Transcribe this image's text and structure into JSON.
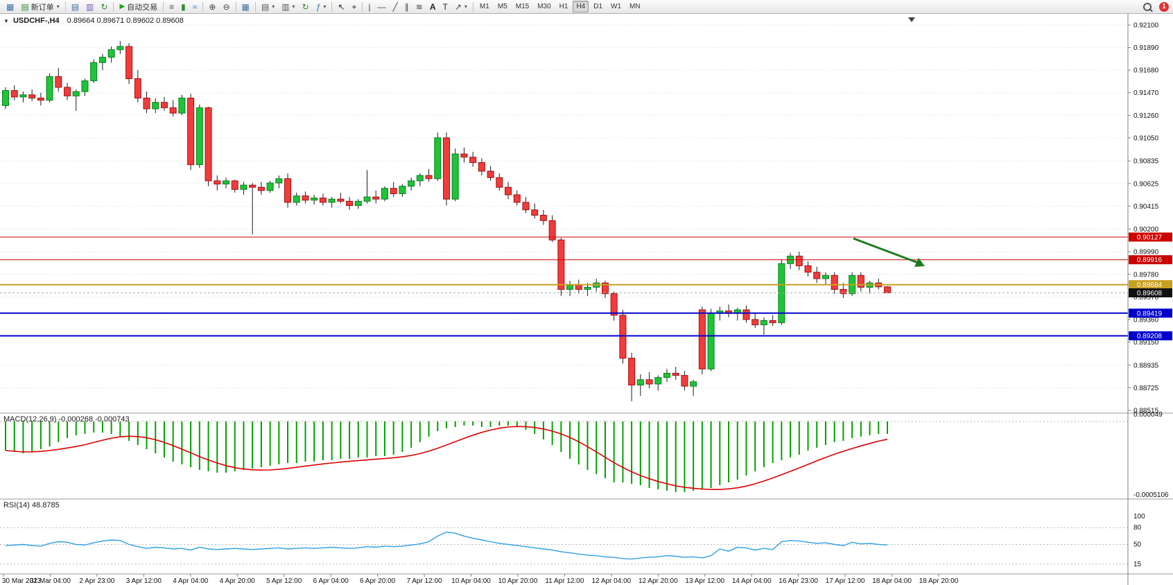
{
  "toolbar": {
    "new_order": {
      "label": "新订单"
    },
    "auto_trading": {
      "label": "自动交易"
    },
    "timeframes": {
      "items": [
        "M1",
        "M5",
        "M15",
        "M30",
        "H1",
        "H4",
        "D1",
        "W1",
        "MN"
      ],
      "active": "H4"
    },
    "notification": {
      "count": "1"
    },
    "icons": {
      "app": "▦",
      "new_order": "▤",
      "profiles": "▥",
      "market_watch": "▤",
      "refresh": "↻",
      "auto_trading": "▶",
      "bar_chart": "≡",
      "candle_chart": "▮",
      "line_chart": "≈",
      "zoom_in": "⊕",
      "zoom_out": "⊖",
      "tile_windows": "▦",
      "new_chart": "▤",
      "template": "▥",
      "auto_scroll": "↻",
      "chart_shift": "⇥",
      "indicators": "ƒ",
      "cursor": "↖",
      "crosshair": "+",
      "vertical_line": "|",
      "horizontal_line": "—",
      "trendline": "╱",
      "channel": "∥",
      "fibonacci": "≋",
      "text": "A",
      "label": "T",
      "arrows": "↗",
      "caret": "▾"
    }
  },
  "chart_data": {
    "type": "candlestick",
    "symbol": "USDCHF-,H4",
    "ohlc_display": "0.89664 0.89671 0.89602 0.89608",
    "style": {
      "up_color": "#1fc437",
      "up_border": "#0b7d22",
      "down_color": "#f23c3c",
      "down_border": "#9e1212",
      "wick_color": "#1a1a1a",
      "grid_color": "#d6d6d6"
    },
    "price_axis": {
      "labels": [
        "0.92100",
        "0.91890",
        "0.91680",
        "0.91470",
        "0.91260",
        "0.91050",
        "0.90835",
        "0.90625",
        "0.90415",
        "0.90200",
        "0.89990",
        "0.89780",
        "0.89570",
        "0.89360",
        "0.89150",
        "0.88935",
        "0.88725",
        "0.88515"
      ],
      "range": [
        0.88515,
        0.921
      ]
    },
    "time_axis": {
      "labels": [
        "30 Mar 2023",
        "31 Mar 04:00",
        "2 Apr 23:00",
        "3 Apr 12:00",
        "4 Apr 04:00",
        "4 Apr 20:00",
        "5 Apr 12:00",
        "6 Apr 04:00",
        "6 Apr 20:00",
        "7 Apr 12:00",
        "10 Apr 04:00",
        "10 Apr 20:00",
        "11 Apr 12:00",
        "12 Apr 04:00",
        "12 Apr 20:00",
        "13 Apr 12:00",
        "14 Apr 04:00",
        "16 Apr 23:00",
        "17 Apr 12:00",
        "18 Apr 04:00",
        "18 Apr 20:00"
      ]
    },
    "candles": [
      [
        0.9135,
        0.9152,
        0.9132,
        0.9149
      ],
      [
        0.9149,
        0.9154,
        0.914,
        0.9143
      ],
      [
        0.9143,
        0.9148,
        0.9138,
        0.9145
      ],
      [
        0.9145,
        0.915,
        0.9139,
        0.9142
      ],
      [
        0.9142,
        0.9147,
        0.9135,
        0.914
      ],
      [
        0.914,
        0.9165,
        0.9138,
        0.9162
      ],
      [
        0.9162,
        0.917,
        0.9148,
        0.9152
      ],
      [
        0.9152,
        0.9156,
        0.914,
        0.9144
      ],
      [
        0.9144,
        0.915,
        0.913,
        0.9148
      ],
      [
        0.9148,
        0.916,
        0.9144,
        0.9158
      ],
      [
        0.9158,
        0.9178,
        0.9156,
        0.9175
      ],
      [
        0.9175,
        0.9183,
        0.9168,
        0.918
      ],
      [
        0.918,
        0.919,
        0.9175,
        0.9187
      ],
      [
        0.9187,
        0.9195,
        0.9183,
        0.919
      ],
      [
        0.919,
        0.9193,
        0.9155,
        0.916
      ],
      [
        0.916,
        0.9168,
        0.9138,
        0.9142
      ],
      [
        0.9142,
        0.9148,
        0.9128,
        0.9132
      ],
      [
        0.9132,
        0.9142,
        0.9128,
        0.9138
      ],
      [
        0.9138,
        0.9143,
        0.913,
        0.9133
      ],
      [
        0.9133,
        0.914,
        0.9125,
        0.9128
      ],
      [
        0.9128,
        0.9145,
        0.9126,
        0.9142
      ],
      [
        0.9142,
        0.9146,
        0.9075,
        0.908
      ],
      [
        0.908,
        0.9136,
        0.9077,
        0.9133
      ],
      [
        0.9133,
        0.9134,
        0.906,
        0.9065
      ],
      [
        0.9065,
        0.907,
        0.9056,
        0.9062
      ],
      [
        0.9062,
        0.9068,
        0.9058,
        0.9065
      ],
      [
        0.9065,
        0.9066,
        0.9054,
        0.9057
      ],
      [
        0.9057,
        0.9064,
        0.9052,
        0.9061
      ],
      [
        0.9061,
        0.9063,
        0.9015,
        0.9059
      ],
      [
        0.9059,
        0.9064,
        0.9052,
        0.9056
      ],
      [
        0.9056,
        0.9065,
        0.9054,
        0.9063
      ],
      [
        0.9063,
        0.907,
        0.9058,
        0.9067
      ],
      [
        0.9067,
        0.9072,
        0.904,
        0.9045
      ],
      [
        0.9045,
        0.9054,
        0.9042,
        0.9051
      ],
      [
        0.9051,
        0.9055,
        0.9044,
        0.9047
      ],
      [
        0.9047,
        0.9052,
        0.9043,
        0.9049
      ],
      [
        0.9049,
        0.9053,
        0.9042,
        0.9045
      ],
      [
        0.9045,
        0.905,
        0.904,
        0.9048
      ],
      [
        0.9048,
        0.9054,
        0.9044,
        0.9046
      ],
      [
        0.9046,
        0.905,
        0.9038,
        0.9042
      ],
      [
        0.9042,
        0.9048,
        0.9039,
        0.9046
      ],
      [
        0.9046,
        0.9075,
        0.9044,
        0.905
      ],
      [
        0.905,
        0.9056,
        0.9044,
        0.9048
      ],
      [
        0.9048,
        0.906,
        0.9046,
        0.9058
      ],
      [
        0.9058,
        0.9064,
        0.905,
        0.9053
      ],
      [
        0.9053,
        0.9062,
        0.905,
        0.906
      ],
      [
        0.906,
        0.9068,
        0.9056,
        0.9065
      ],
      [
        0.9065,
        0.9072,
        0.906,
        0.907
      ],
      [
        0.907,
        0.9076,
        0.9064,
        0.9067
      ],
      [
        0.9067,
        0.911,
        0.9065,
        0.9105
      ],
      [
        0.9105,
        0.911,
        0.9042,
        0.9048
      ],
      [
        0.9048,
        0.9095,
        0.9046,
        0.909
      ],
      [
        0.909,
        0.9096,
        0.9082,
        0.9087
      ],
      [
        0.9087,
        0.9092,
        0.9078,
        0.9082
      ],
      [
        0.9082,
        0.9086,
        0.907,
        0.9074
      ],
      [
        0.9074,
        0.9079,
        0.9065,
        0.9068
      ],
      [
        0.9068,
        0.9072,
        0.9056,
        0.9059
      ],
      [
        0.9059,
        0.9064,
        0.9048,
        0.9052
      ],
      [
        0.9052,
        0.9056,
        0.9042,
        0.9045
      ],
      [
        0.9045,
        0.905,
        0.9035,
        0.9038
      ],
      [
        0.9038,
        0.9044,
        0.903,
        0.9033
      ],
      [
        0.9033,
        0.9038,
        0.9024,
        0.9028
      ],
      [
        0.9028,
        0.9033,
        0.9008,
        0.901
      ],
      [
        0.901,
        0.9012,
        0.8958,
        0.8964
      ],
      [
        0.8964,
        0.8972,
        0.8958,
        0.8968
      ],
      [
        0.8968,
        0.8973,
        0.896,
        0.8964
      ],
      [
        0.8964,
        0.897,
        0.8958,
        0.8966
      ],
      [
        0.8966,
        0.8974,
        0.8962,
        0.897
      ],
      [
        0.897,
        0.8972,
        0.8956,
        0.896
      ],
      [
        0.896,
        0.8962,
        0.8935,
        0.894
      ],
      [
        0.894,
        0.8945,
        0.8895,
        0.89
      ],
      [
        0.89,
        0.8905,
        0.886,
        0.8875
      ],
      [
        0.8875,
        0.8885,
        0.8865,
        0.888
      ],
      [
        0.888,
        0.8887,
        0.8872,
        0.8876
      ],
      [
        0.8876,
        0.8884,
        0.887,
        0.8882
      ],
      [
        0.8882,
        0.889,
        0.8878,
        0.8886
      ],
      [
        0.8886,
        0.8892,
        0.888,
        0.8884
      ],
      [
        0.8884,
        0.8888,
        0.887,
        0.8874
      ],
      [
        0.8874,
        0.888,
        0.8865,
        0.8878
      ],
      [
        0.8945,
        0.8948,
        0.8885,
        0.889
      ],
      [
        0.889,
        0.8946,
        0.8888,
        0.8942
      ],
      [
        0.8942,
        0.8948,
        0.8935,
        0.8944
      ],
      [
        0.8944,
        0.895,
        0.8938,
        0.8942
      ],
      [
        0.8942,
        0.8947,
        0.8935,
        0.8945
      ],
      [
        0.8945,
        0.8949,
        0.8933,
        0.8936
      ],
      [
        0.8936,
        0.8942,
        0.8928,
        0.8931
      ],
      [
        0.8931,
        0.8938,
        0.8922,
        0.8935
      ],
      [
        0.8935,
        0.894,
        0.893,
        0.8933
      ],
      [
        0.8933,
        0.8992,
        0.8931,
        0.8988
      ],
      [
        0.8988,
        0.8998,
        0.8983,
        0.8995
      ],
      [
        0.8995,
        0.8999,
        0.8982,
        0.8986
      ],
      [
        0.8986,
        0.899,
        0.8976,
        0.898
      ],
      [
        0.898,
        0.8985,
        0.897,
        0.8974
      ],
      [
        0.8974,
        0.898,
        0.8968,
        0.8977
      ],
      [
        0.8977,
        0.898,
        0.896,
        0.8964
      ],
      [
        0.8964,
        0.897,
        0.8956,
        0.896
      ],
      [
        0.896,
        0.898,
        0.8958,
        0.8977
      ],
      [
        0.8977,
        0.898,
        0.8962,
        0.8966
      ],
      [
        0.8966,
        0.8972,
        0.896,
        0.897
      ],
      [
        0.897,
        0.8974,
        0.8964,
        0.89664
      ],
      [
        0.89664,
        0.89671,
        0.89602,
        0.89608
      ]
    ],
    "levels": [
      {
        "price": 0.90127,
        "color": "#cc0000",
        "width": 1,
        "tag": "0.90127"
      },
      {
        "price": 0.89916,
        "color": "#cc0000",
        "width": 1,
        "tag": "0.89916"
      },
      {
        "price": 0.89684,
        "color": "#c8a020",
        "width": 2,
        "tag": "0.89684"
      },
      {
        "price": 0.89419,
        "color": "#0000cc",
        "width": 2,
        "tag": "0.89419"
      },
      {
        "price": 0.89208,
        "color": "#0000cc",
        "width": 2,
        "tag": "0.89208"
      }
    ],
    "bid": {
      "price": 0.89608,
      "tag": "0.89608",
      "tag_color": "#111111"
    },
    "annotation": {
      "type": "arrow",
      "direction": "down-right",
      "color": "#1e7a1e"
    },
    "macd": {
      "label": "MACD(12,26,9) -0.000268 -0.000743",
      "histogram_color": "#00a000",
      "signal_color": "#dd0000",
      "axis_labels": [
        "0.000049",
        "-0.0005106"
      ],
      "histogram": [
        -0.00021,
        -0.00022,
        -0.00023,
        -0.00022,
        -0.0002,
        -0.00018,
        -0.00015,
        -0.00012,
        -0.0001,
        -9e-05,
        -8e-05,
        -8e-05,
        -9e-05,
        -0.00011,
        -0.00014,
        -0.00017,
        -0.0002,
        -0.00023,
        -0.00026,
        -0.00029,
        -0.00031,
        -0.00033,
        -0.00035,
        -0.00036,
        -0.00037,
        -0.00037,
        -0.00036,
        -0.00035,
        -0.00034,
        -0.00033,
        -0.00032,
        -0.00031,
        -0.0003,
        -0.0003,
        -0.00029,
        -0.00029,
        -0.00028,
        -0.00028,
        -0.00027,
        -0.00027,
        -0.00026,
        -0.00026,
        -0.00025,
        -0.00025,
        -0.00024,
        -0.00022,
        -0.00019,
        -0.00015,
        -0.00011,
        -7e-05,
        -5e-05,
        -4e-05,
        -3e-05,
        -3e-05,
        -4e-05,
        -4e-05,
        -3e-05,
        -3e-05,
        -4e-05,
        -6e-05,
        -9e-05,
        -0.00013,
        -0.00017,
        -0.00022,
        -0.00027,
        -0.00031,
        -0.00035,
        -0.00038,
        -0.00041,
        -0.00044,
        -0.00044,
        -0.00045,
        -0.00046,
        -0.00048,
        -0.00049,
        -0.0005,
        -0.00051,
        -0.00051,
        -0.0005,
        -0.00049,
        -0.00048,
        -0.00046,
        -0.00044,
        -0.00042,
        -0.00039,
        -0.00036,
        -0.00033,
        -0.0003,
        -0.00028,
        -0.00026,
        -0.00024,
        -0.00021,
        -0.00019,
        -0.00017,
        -0.00015,
        -0.00014,
        -0.00012,
        -0.00011,
        -0.0001,
        -9e-05,
        -9e-05
      ]
    },
    "rsi": {
      "label": "RSI(14) 48.8785",
      "value": "48.8785",
      "line_color": "#2f9fe5",
      "levels": [
        80,
        50,
        15
      ],
      "axis_labels": [
        "100",
        "80",
        "50",
        "15"
      ],
      "values": [
        48,
        49,
        50,
        48,
        47,
        52,
        55,
        54,
        50,
        49,
        53,
        56,
        58,
        57,
        50,
        46,
        43,
        45,
        44,
        42,
        43,
        40,
        45,
        42,
        41,
        42,
        43,
        42,
        41,
        42,
        43,
        44,
        42,
        43,
        44,
        43,
        44,
        45,
        44,
        43,
        44,
        46,
        45,
        47,
        46,
        47,
        49,
        51,
        55,
        65,
        72,
        70,
        65,
        61,
        58,
        55,
        52,
        50,
        48,
        46,
        44,
        42,
        40,
        37,
        35,
        33,
        31,
        30,
        28,
        27,
        25,
        24,
        26,
        27,
        28,
        30,
        29,
        27,
        28,
        26,
        30,
        42,
        38,
        45,
        44,
        40,
        43,
        41,
        55,
        57,
        56,
        54,
        52,
        53,
        50,
        48,
        54,
        51,
        52,
        50,
        49
      ]
    }
  }
}
